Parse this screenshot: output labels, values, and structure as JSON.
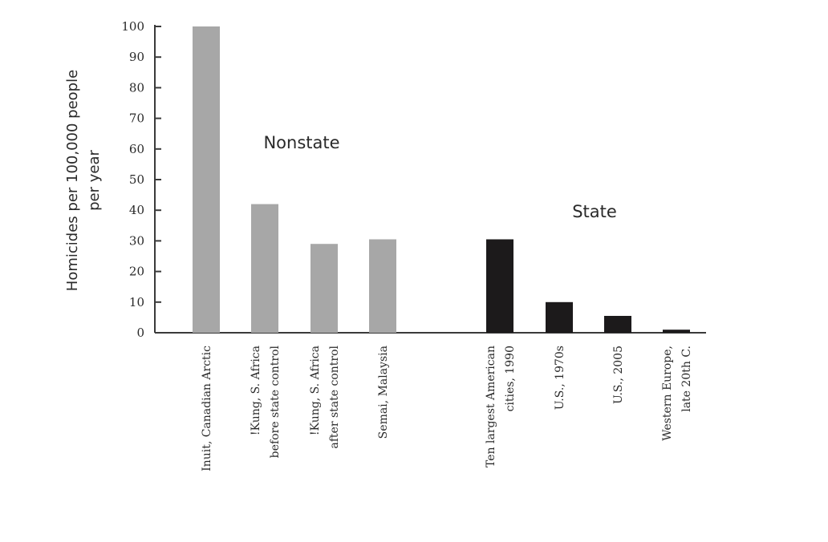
{
  "chart_data": {
    "type": "bar",
    "ylabel": [
      "Homicides per 100,000 people",
      "per year"
    ],
    "ylim": [
      0,
      100
    ],
    "yticks": [
      "0",
      "10",
      "20",
      "30",
      "40",
      "50",
      "60",
      "70",
      "80",
      "90",
      "100"
    ],
    "grid": false,
    "groups": [
      {
        "label": "Nonstate",
        "color": "#a7a7a7",
        "categories": [
          [
            "Inuit, Canadian Arctic"
          ],
          [
            "!Kung, S. Africa",
            "before state control"
          ],
          [
            "!Kung, S. Africa",
            "after state control"
          ],
          [
            "Semai, Malaysia"
          ]
        ],
        "values": [
          100,
          42,
          29,
          30.5
        ]
      },
      {
        "label": "State",
        "color": "#1c1a1b",
        "categories": [
          [
            "Ten largest American",
            "cities, 1990"
          ],
          [
            "U.S., 1970s"
          ],
          [
            "U.S., 2005"
          ],
          [
            "Western Europe,",
            "late 20th C."
          ]
        ],
        "values": [
          30.5,
          10,
          5.5,
          1
        ]
      }
    ]
  }
}
